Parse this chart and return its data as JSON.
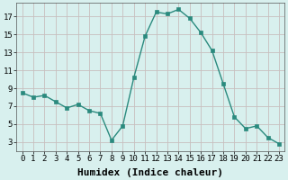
{
  "x": [
    0,
    1,
    2,
    3,
    4,
    5,
    6,
    7,
    8,
    9,
    10,
    11,
    12,
    13,
    14,
    15,
    16,
    17,
    18,
    19,
    20,
    21,
    22,
    23
  ],
  "y": [
    8.5,
    8.0,
    8.2,
    7.5,
    6.8,
    7.2,
    6.5,
    6.2,
    3.2,
    4.8,
    10.2,
    14.8,
    17.5,
    17.3,
    17.8,
    16.8,
    15.2,
    13.2,
    9.5,
    5.8,
    4.5,
    4.8,
    3.5,
    2.8
  ],
  "line_color": "#2a8a7e",
  "marker": "s",
  "markersize": 2.5,
  "linewidth": 1.0,
  "xlabel": "Humidex (Indice chaleur)",
  "xlabel_fontsize": 8,
  "bg_color": "#d8f0ee",
  "grid_color": "#c8bebe",
  "xlim": [
    -0.5,
    23.5
  ],
  "ylim": [
    2.0,
    18.5
  ],
  "yticks": [
    3,
    5,
    7,
    9,
    11,
    13,
    15,
    17
  ],
  "xticks": [
    0,
    1,
    2,
    3,
    4,
    5,
    6,
    7,
    8,
    9,
    10,
    11,
    12,
    13,
    14,
    15,
    16,
    17,
    18,
    19,
    20,
    21,
    22,
    23
  ],
  "tick_fontsize": 6.5
}
